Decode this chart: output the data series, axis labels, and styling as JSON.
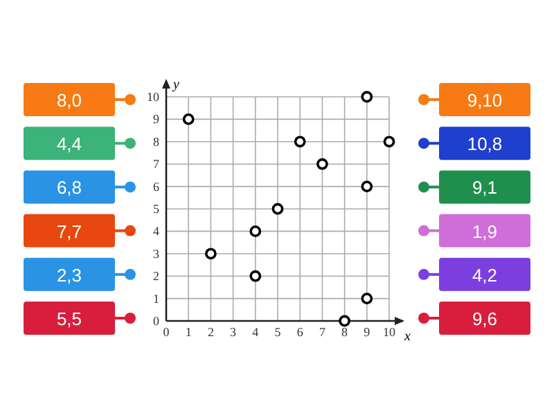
{
  "chart_data": {
    "type": "scatter",
    "xlabel": "x",
    "ylabel": "y",
    "x": [
      1,
      2,
      4,
      4,
      5,
      6,
      7,
      8,
      9,
      9,
      9,
      10
    ],
    "values": [
      9,
      3,
      4,
      2,
      5,
      8,
      7,
      0,
      10,
      6,
      1,
      8
    ],
    "color": "#000000",
    "marker": "circle",
    "grid": true,
    "xlim": [
      0,
      10
    ],
    "ylim": [
      0,
      10
    ],
    "xticks": [
      0,
      1,
      2,
      3,
      4,
      5,
      6,
      7,
      8,
      9,
      10
    ],
    "yticks": [
      0,
      1,
      2,
      3,
      4,
      5,
      6,
      7,
      8,
      9,
      10
    ],
    "annotations": [
      "8,0",
      "4,4",
      "6,8",
      "7,7",
      "2,3",
      "5,5",
      "9,10",
      "10,8",
      "9,1",
      "1,9",
      "4,2",
      "9,6"
    ]
  }
}
